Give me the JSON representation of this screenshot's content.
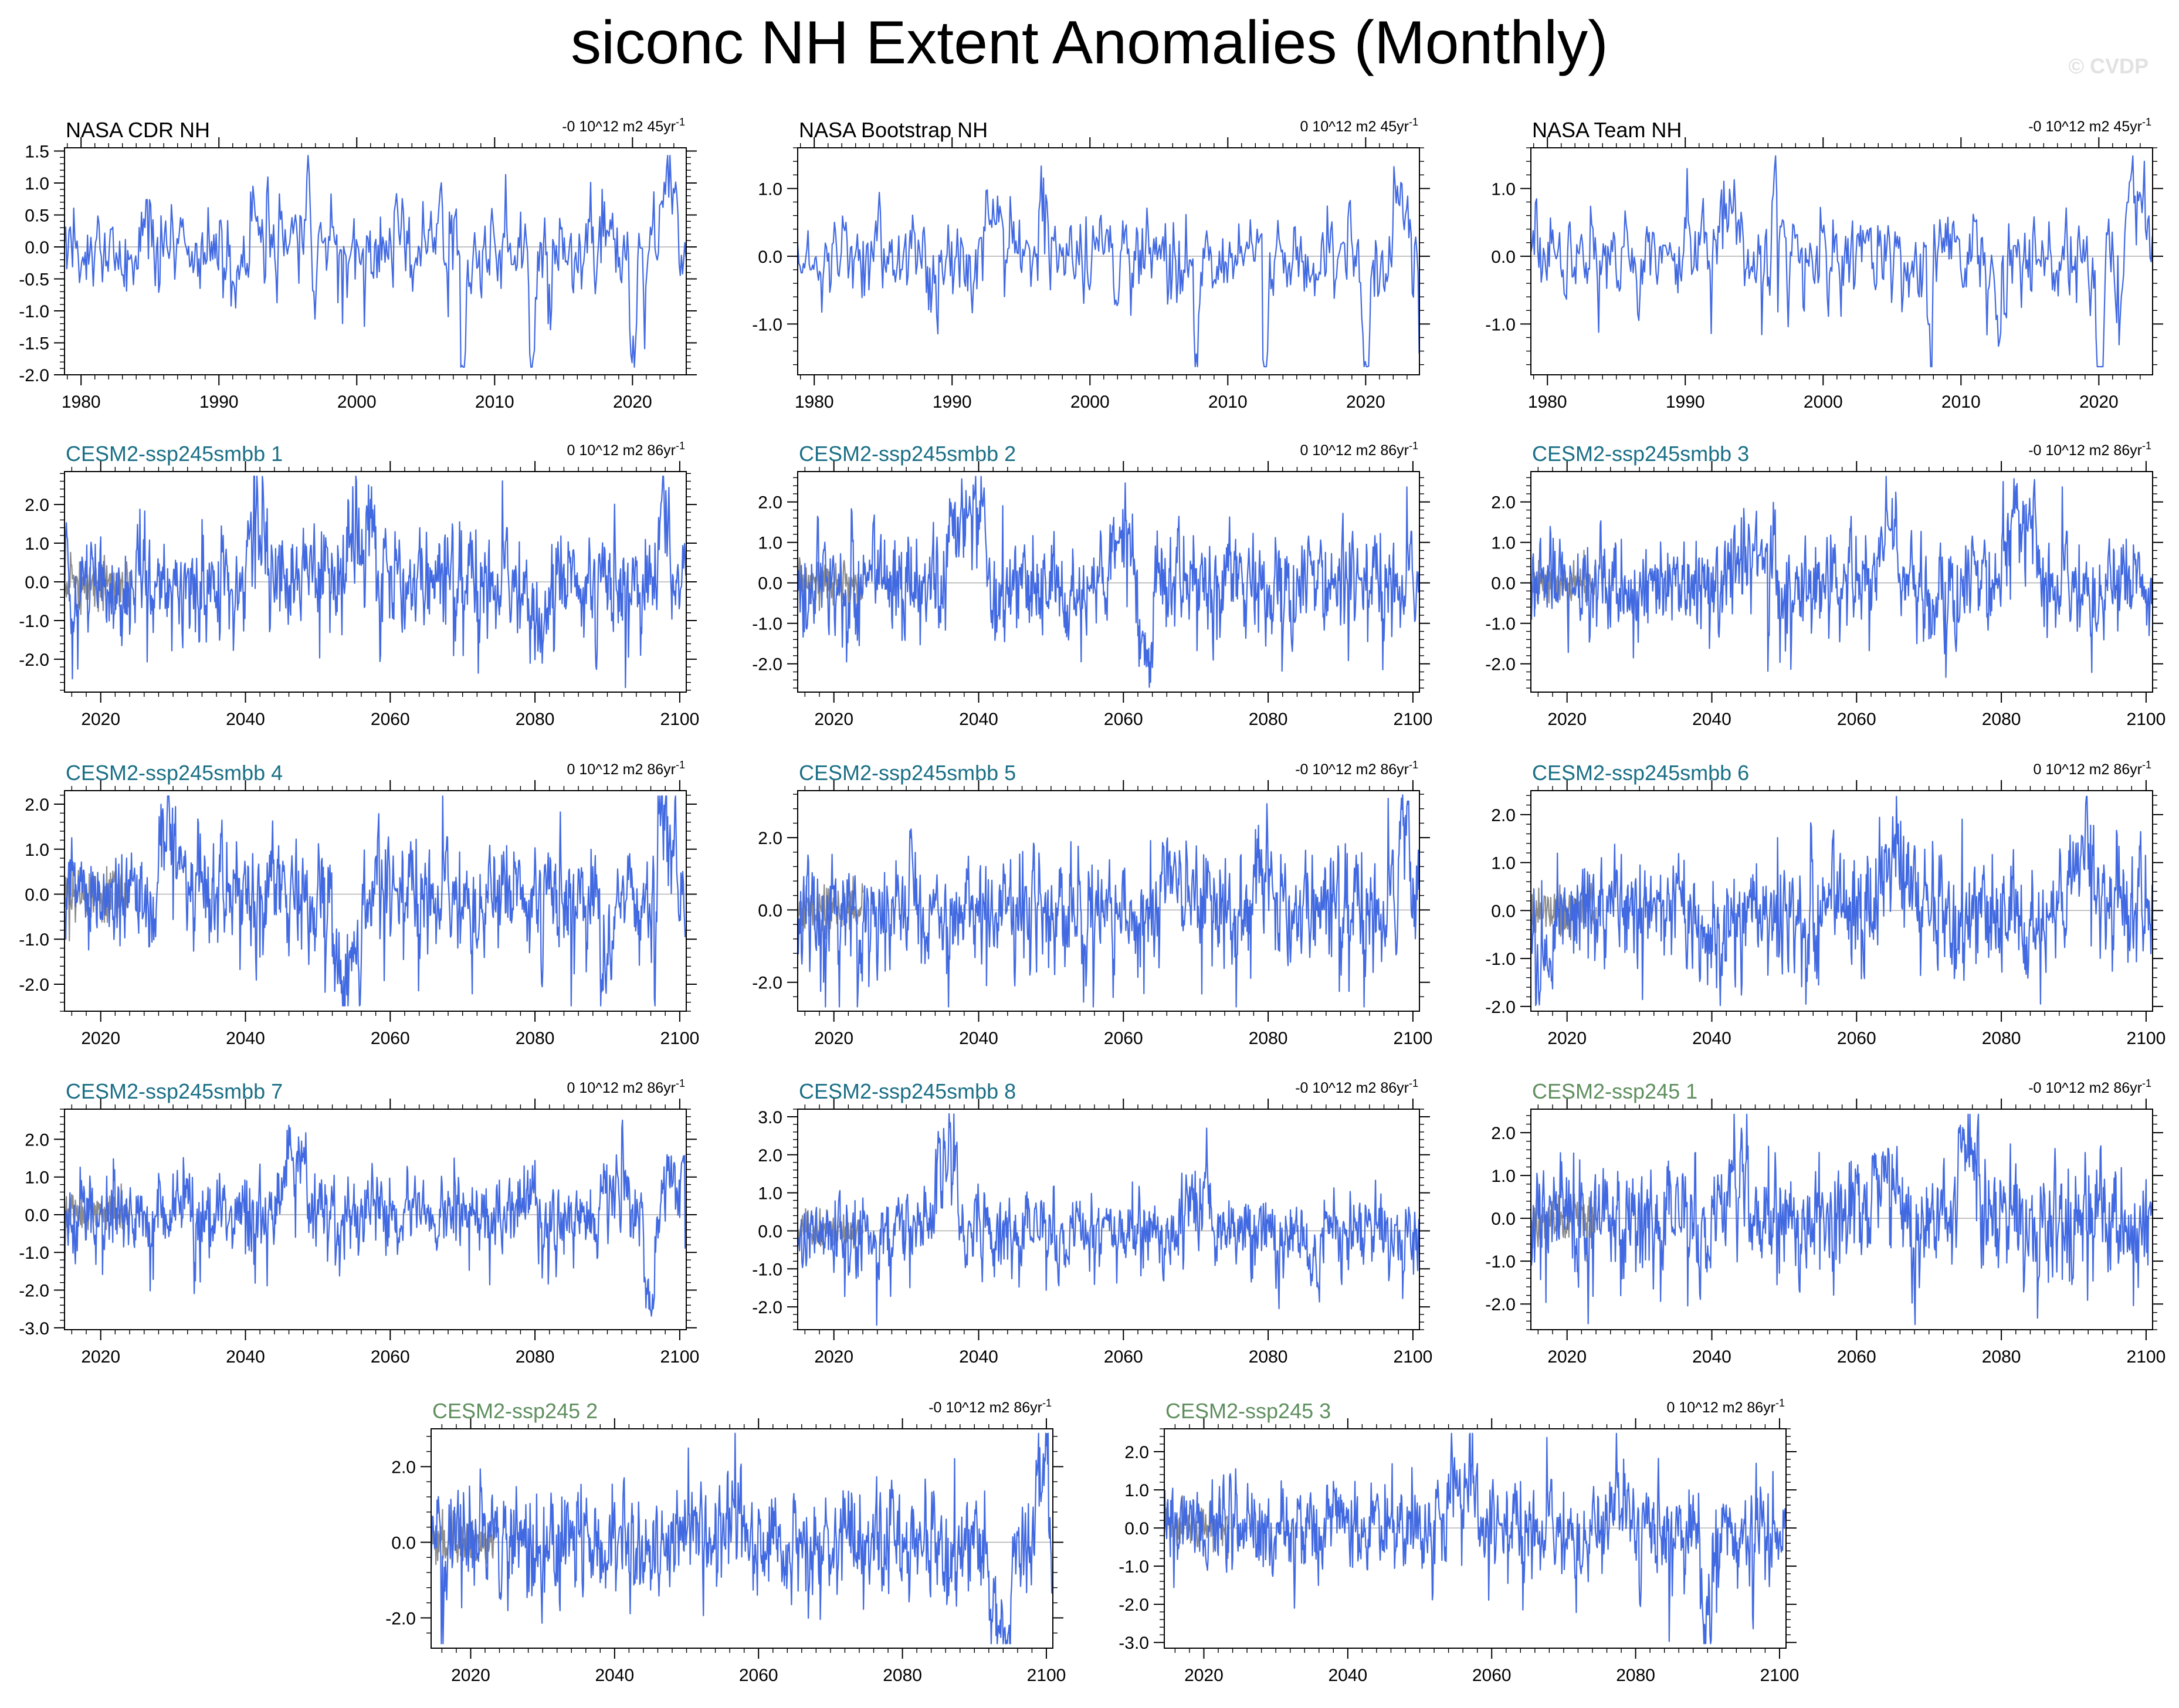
{
  "title": "siconc NH Extent Anomalies (Monthly)",
  "watermark": "© CVDP",
  "colors": {
    "series": "#4169e1",
    "observations_overlay": "#8c8c8c",
    "zero_line": "#b4b4b4",
    "obs_title": "#000000",
    "smbb_title": "#1a6f86",
    "ssp245_title": "#5f8f5f"
  },
  "chart_data": [
    {
      "type": "line",
      "panel": "NASA CDR NH",
      "title_color": "obs",
      "trend_text": "-0 10^12 m2 45yr",
      "trend_sup": "-1",
      "xlim": [
        1978.8,
        2023.9
      ],
      "ylim": [
        -2.0,
        1.55
      ],
      "yticks": [
        -2.0,
        -1.5,
        -1.0,
        -0.5,
        0.0,
        0.5,
        1.0,
        1.5
      ],
      "ytick_labels": [
        "-2.0",
        "-1.5",
        "-1.0",
        "-0.5",
        "0.0",
        "0.5",
        "1.0",
        "1.5"
      ],
      "xticks": [
        1980,
        1990,
        2000,
        2010,
        2020
      ],
      "xtick_labels": [
        "1980",
        "1990",
        "2000",
        "2010",
        "2020"
      ],
      "overlay": false,
      "seed": 11,
      "amp": 0.32,
      "ar": 0.55,
      "episodes": [
        [
          1992.2,
          1993.6,
          0.45
        ],
        [
          1996.3,
          1996.7,
          1.0
        ],
        [
          2007.5,
          2007.9,
          -1.1
        ],
        [
          2012.5,
          2012.9,
          -1.3
        ],
        [
          2019.8,
          2020.3,
          -1.1
        ],
        [
          2021.9,
          2023.3,
          0.6
        ]
      ]
    },
    {
      "type": "line",
      "panel": "NASA Bootstrap NH",
      "title_color": "obs",
      "trend_text": "0 10^12 m2 45yr",
      "trend_sup": "-1",
      "xlim": [
        1978.8,
        2023.9
      ],
      "ylim": [
        -1.75,
        1.6
      ],
      "yticks": [
        -1.0,
        0.0,
        1.0
      ],
      "ytick_labels": [
        "-1.0",
        "0.0",
        "1.0"
      ],
      "xticks": [
        1980,
        1990,
        2000,
        2010,
        2020
      ],
      "xtick_labels": [
        "1980",
        "1990",
        "2000",
        "2010",
        "2020"
      ],
      "overlay": false,
      "seed": 12,
      "amp": 0.28,
      "ar": 0.55,
      "episodes": [
        [
          1992.2,
          1993.6,
          0.4
        ],
        [
          1996.3,
          1996.7,
          1.05
        ],
        [
          2007.5,
          2007.9,
          -1.05
        ],
        [
          2012.5,
          2012.9,
          -1.35
        ],
        [
          2019.8,
          2020.3,
          -1.0
        ],
        [
          2021.9,
          2023.3,
          0.5
        ]
      ]
    },
    {
      "type": "line",
      "panel": "NASA Team NH",
      "title_color": "obs",
      "trend_text": "-0 10^12 m2 45yr",
      "trend_sup": "-1",
      "xlim": [
        1978.8,
        2023.9
      ],
      "ylim": [
        -1.75,
        1.6
      ],
      "yticks": [
        -1.0,
        0.0,
        1.0
      ],
      "ytick_labels": [
        "-1.0",
        "0.0",
        "1.0"
      ],
      "xticks": [
        1980,
        1990,
        2000,
        2010,
        2020
      ],
      "xtick_labels": [
        "1980",
        "1990",
        "2000",
        "2010",
        "2020"
      ],
      "overlay": false,
      "seed": 13,
      "amp": 0.28,
      "ar": 0.55,
      "episodes": [
        [
          1992.2,
          1993.6,
          0.4
        ],
        [
          1996.3,
          1996.7,
          1.1
        ],
        [
          2007.5,
          2007.9,
          -1.05
        ],
        [
          2012.5,
          2012.9,
          -1.3
        ],
        [
          2019.8,
          2020.3,
          -1.05
        ],
        [
          2021.9,
          2023.3,
          0.55
        ]
      ]
    },
    {
      "type": "line",
      "panel": "CESM2-ssp245smbb 1",
      "title_color": "smbb",
      "trend_text": "0 10^12 m2 86yr",
      "trend_sup": "-1",
      "xlim": [
        2015,
        2100.9
      ],
      "ylim": [
        -2.85,
        2.85
      ],
      "yticks": [
        -2.0,
        -1.0,
        0.0,
        1.0,
        2.0
      ],
      "ytick_labels": [
        "-2.0",
        "-1.0",
        "0.0",
        "1.0",
        "2.0"
      ],
      "xticks": [
        2020,
        2040,
        2060,
        2080,
        2100
      ],
      "xtick_labels": [
        "2020",
        "2040",
        "2060",
        "2080",
        "2100"
      ],
      "overlay": true,
      "seed": 21,
      "amp": 0.55,
      "ar": 0.55,
      "episodes": [
        [
          2040,
          2043,
          0.8
        ],
        [
          2054,
          2058,
          1.0
        ],
        [
          2079,
          2082,
          -0.7
        ],
        [
          2097,
          2098.5,
          1.2
        ]
      ]
    },
    {
      "type": "line",
      "panel": "CESM2-ssp245smbb 2",
      "title_color": "smbb",
      "trend_text": "0 10^12 m2 86yr",
      "trend_sup": "-1",
      "xlim": [
        2015,
        2100.9
      ],
      "ylim": [
        -2.7,
        2.75
      ],
      "yticks": [
        -2.0,
        -1.0,
        0.0,
        1.0,
        2.0
      ],
      "ytick_labels": [
        "-2.0",
        "-1.0",
        "0.0",
        "1.0",
        "2.0"
      ],
      "xticks": [
        2020,
        2040,
        2060,
        2080,
        2100
      ],
      "xtick_labels": [
        "2020",
        "2040",
        "2060",
        "2080",
        "2100"
      ],
      "overlay": true,
      "seed": 22,
      "amp": 0.5,
      "ar": 0.55,
      "episodes": [
        [
          2036,
          2041,
          1.0
        ],
        [
          2058,
          2061,
          0.7
        ],
        [
          2062,
          2064,
          -0.9
        ]
      ]
    },
    {
      "type": "line",
      "panel": "CESM2-ssp245smbb 3",
      "title_color": "smbb",
      "trend_text": "-0 10^12 m2 86yr",
      "trend_sup": "-1",
      "xlim": [
        2015,
        2100.9
      ],
      "ylim": [
        -2.7,
        2.75
      ],
      "yticks": [
        -2.0,
        -1.0,
        0.0,
        1.0,
        2.0
      ],
      "ytick_labels": [
        "-2.0",
        "-1.0",
        "0.0",
        "1.0",
        "2.0"
      ],
      "xticks": [
        2020,
        2040,
        2060,
        2080,
        2100
      ],
      "xtick_labels": [
        "2020",
        "2040",
        "2060",
        "2080",
        "2100"
      ],
      "overlay": true,
      "seed": 23,
      "amp": 0.5,
      "ar": 0.55,
      "episodes": [
        [
          2043,
          2047,
          0.6
        ],
        [
          2063,
          2065.5,
          0.9
        ],
        [
          2080,
          2085,
          0.8
        ],
        [
          2069,
          2071,
          -0.6
        ]
      ]
    },
    {
      "type": "line",
      "panel": "CESM2-ssp245smbb 4",
      "title_color": "smbb",
      "trend_text": "0 10^12 m2 86yr",
      "trend_sup": "-1",
      "xlim": [
        2015,
        2100.9
      ],
      "ylim": [
        -2.6,
        2.3
      ],
      "yticks": [
        -2.0,
        -1.0,
        0.0,
        1.0,
        2.0
      ],
      "ytick_labels": [
        "-2.0",
        "-1.0",
        "0.0",
        "1.0",
        "2.0"
      ],
      "xticks": [
        2020,
        2040,
        2060,
        2080,
        2100
      ],
      "xtick_labels": [
        "2020",
        "2040",
        "2060",
        "2080",
        "2100"
      ],
      "overlay": true,
      "seed": 24,
      "amp": 0.5,
      "ar": 0.55,
      "episodes": [
        [
          2028,
          2031,
          0.8
        ],
        [
          2052,
          2056,
          -1.0
        ],
        [
          2089,
          2091,
          -0.9
        ],
        [
          2097,
          2099.5,
          1.0
        ]
      ]
    },
    {
      "type": "line",
      "panel": "CESM2-ssp245smbb 5",
      "title_color": "smbb",
      "trend_text": "-0 10^12 m2 86yr",
      "trend_sup": "-1",
      "xlim": [
        2015,
        2100.9
      ],
      "ylim": [
        -2.8,
        3.3
      ],
      "yticks": [
        -2.0,
        0.0,
        2.0
      ],
      "ytick_labels": [
        "-2.0",
        "0.0",
        "2.0"
      ],
      "xticks": [
        2020,
        2040,
        2060,
        2080,
        2100
      ],
      "xtick_labels": [
        "2020",
        "2040",
        "2060",
        "2080",
        "2100"
      ],
      "overlay": true,
      "seed": 25,
      "amp": 0.65,
      "ar": 0.55,
      "episodes": [
        [
          2065,
          2069,
          0.7
        ],
        [
          2078,
          2080,
          0.8
        ],
        [
          2098,
          2099.5,
          1.6
        ]
      ]
    },
    {
      "type": "line",
      "panel": "CESM2-ssp245smbb 6",
      "title_color": "smbb",
      "trend_text": "0 10^12 m2 86yr",
      "trend_sup": "-1",
      "xlim": [
        2015,
        2100.9
      ],
      "ylim": [
        -2.1,
        2.5
      ],
      "yticks": [
        -2.0,
        -1.0,
        0.0,
        1.0,
        2.0
      ],
      "ytick_labels": [
        "-2.0",
        "-1.0",
        "0.0",
        "1.0",
        "2.0"
      ],
      "xticks": [
        2020,
        2040,
        2060,
        2080,
        2100
      ],
      "xtick_labels": [
        "2020",
        "2040",
        "2060",
        "2080",
        "2100"
      ],
      "overlay": true,
      "seed": 26,
      "amp": 0.5,
      "ar": 0.55,
      "episodes": [
        [
          2015.5,
          2018,
          -0.8
        ],
        [
          2063,
          2068,
          0.6
        ],
        [
          2089,
          2093,
          0.7
        ],
        [
          2038,
          2042,
          -0.4
        ]
      ]
    },
    {
      "type": "line",
      "panel": "CESM2-ssp245smbb 7",
      "title_color": "smbb",
      "trend_text": "0 10^12 m2 86yr",
      "trend_sup": "-1",
      "xlim": [
        2015,
        2100.9
      ],
      "ylim": [
        -3.05,
        2.8
      ],
      "yticks": [
        -3.0,
        -2.0,
        -1.0,
        0.0,
        1.0,
        2.0
      ],
      "ytick_labels": [
        "-3.0",
        "-2.0",
        "-1.0",
        "0.0",
        "1.0",
        "2.0"
      ],
      "xticks": [
        2020,
        2040,
        2060,
        2080,
        2100
      ],
      "xtick_labels": [
        "2020",
        "2040",
        "2060",
        "2080",
        "2100"
      ],
      "overlay": true,
      "seed": 27,
      "amp": 0.45,
      "ar": 0.55,
      "episodes": [
        [
          2045,
          2048.5,
          1.0
        ],
        [
          2089,
          2093,
          0.5
        ],
        [
          2095,
          2096.5,
          -1.2
        ],
        [
          2098,
          2100.5,
          0.7
        ]
      ]
    },
    {
      "type": "line",
      "panel": "CESM2-ssp245smbb 8",
      "title_color": "smbb",
      "trend_text": "-0 10^12 m2 86yr",
      "trend_sup": "-1",
      "xlim": [
        2015,
        2100.9
      ],
      "ylim": [
        -2.6,
        3.2
      ],
      "yticks": [
        -2.0,
        -1.0,
        0.0,
        1.0,
        2.0,
        3.0
      ],
      "ytick_labels": [
        "-2.0",
        "-1.0",
        "0.0",
        "1.0",
        "2.0",
        "3.0"
      ],
      "xticks": [
        2020,
        2040,
        2060,
        2080,
        2100
      ],
      "xtick_labels": [
        "2020",
        "2040",
        "2060",
        "2080",
        "2100"
      ],
      "overlay": true,
      "seed": 28,
      "amp": 0.42,
      "ar": 0.55,
      "episodes": [
        [
          2034,
          2037,
          1.3
        ],
        [
          2068,
          2072,
          0.5
        ],
        [
          2085,
          2087,
          -0.6
        ]
      ]
    },
    {
      "type": "line",
      "panel": "CESM2-ssp245 1",
      "title_color": "ssp245",
      "trend_text": "-0 10^12 m2 86yr",
      "trend_sup": "-1",
      "xlim": [
        2015,
        2100.9
      ],
      "ylim": [
        -2.6,
        2.55
      ],
      "yticks": [
        -2.0,
        -1.0,
        0.0,
        1.0,
        2.0
      ],
      "ytick_labels": [
        "-2.0",
        "-1.0",
        "0.0",
        "1.0",
        "2.0"
      ],
      "xticks": [
        2020,
        2040,
        2060,
        2080,
        2100
      ],
      "xtick_labels": [
        "2020",
        "2040",
        "2060",
        "2080",
        "2100"
      ],
      "overlay": true,
      "seed": 31,
      "amp": 0.55,
      "ar": 0.55,
      "episodes": [
        [
          2042,
          2045,
          0.6
        ],
        [
          2062,
          2066,
          0.5
        ],
        [
          2074,
          2077,
          0.8
        ]
      ]
    },
    {
      "type": "line",
      "panel": "CESM2-ssp245 2",
      "title_color": "ssp245",
      "trend_text": "-0 10^12 m2 86yr",
      "trend_sup": "-1",
      "xlim": [
        2014.5,
        2100.9
      ],
      "ylim": [
        -2.8,
        3.0
      ],
      "yticks": [
        -2.0,
        0.0,
        2.0
      ],
      "ytick_labels": [
        "-2.0",
        "0.0",
        "2.0"
      ],
      "xticks": [
        2020,
        2040,
        2060,
        2080,
        2100
      ],
      "xtick_labels": [
        "2020",
        "2040",
        "2060",
        "2080",
        "2100"
      ],
      "overlay": true,
      "seed": 32,
      "amp": 0.58,
      "ar": 0.55,
      "episodes": [
        [
          2092,
          2095,
          -1.3
        ],
        [
          2098.5,
          2100.3,
          1.4
        ],
        [
          2055,
          2058,
          0.6
        ]
      ]
    },
    {
      "type": "line",
      "panel": "CESM2-ssp245 3",
      "title_color": "ssp245",
      "trend_text": "0 10^12 m2 86yr",
      "trend_sup": "-1",
      "xlim": [
        2014.5,
        2100.9
      ],
      "ylim": [
        -3.15,
        2.6
      ],
      "yticks": [
        -3.0,
        -2.0,
        -1.0,
        0.0,
        1.0,
        2.0
      ],
      "ytick_labels": [
        "-3.0",
        "-2.0",
        "-1.0",
        "0.0",
        "1.0",
        "2.0"
      ],
      "xticks": [
        2020,
        2040,
        2060,
        2080,
        2100
      ],
      "xtick_labels": [
        "2020",
        "2040",
        "2060",
        "2080",
        "2100"
      ],
      "overlay": true,
      "seed": 33,
      "amp": 0.5,
      "ar": 0.55,
      "episodes": [
        [
          2054,
          2058,
          0.7
        ],
        [
          2089,
          2090.5,
          -1.4
        ],
        [
          2076,
          2079,
          0.6
        ]
      ]
    }
  ]
}
